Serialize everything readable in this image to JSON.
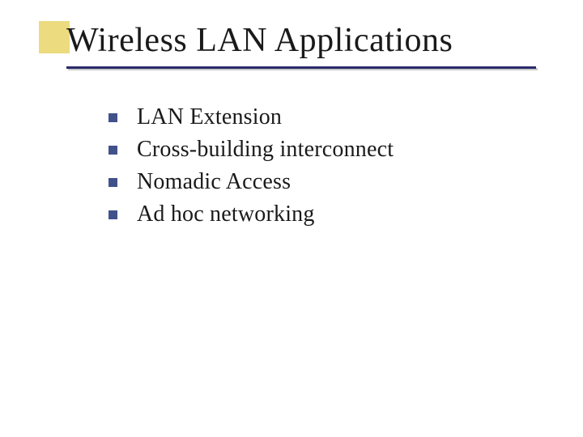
{
  "slide": {
    "title": "Wireless LAN Applications",
    "bullets": [
      "LAN Extension",
      "Cross-building interconnect",
      "Nomadic Access",
      "Ad hoc networking"
    ],
    "styling": {
      "background_color": "#ffffff",
      "accent_box_color": "#ecdb7f",
      "underline_color": "#2a2a6a",
      "underline_shadow_color": "#c8c8c8",
      "bullet_marker_color": "#41528b",
      "title_fontsize": 42,
      "title_color": "#1a1a1a",
      "bullet_fontsize": 28,
      "bullet_color": "#1a1a1a",
      "font_family": "Garamond, Times New Roman, serif",
      "bullet_marker_size": 11,
      "accent_box_width": 38,
      "accent_box_height": 40
    }
  }
}
